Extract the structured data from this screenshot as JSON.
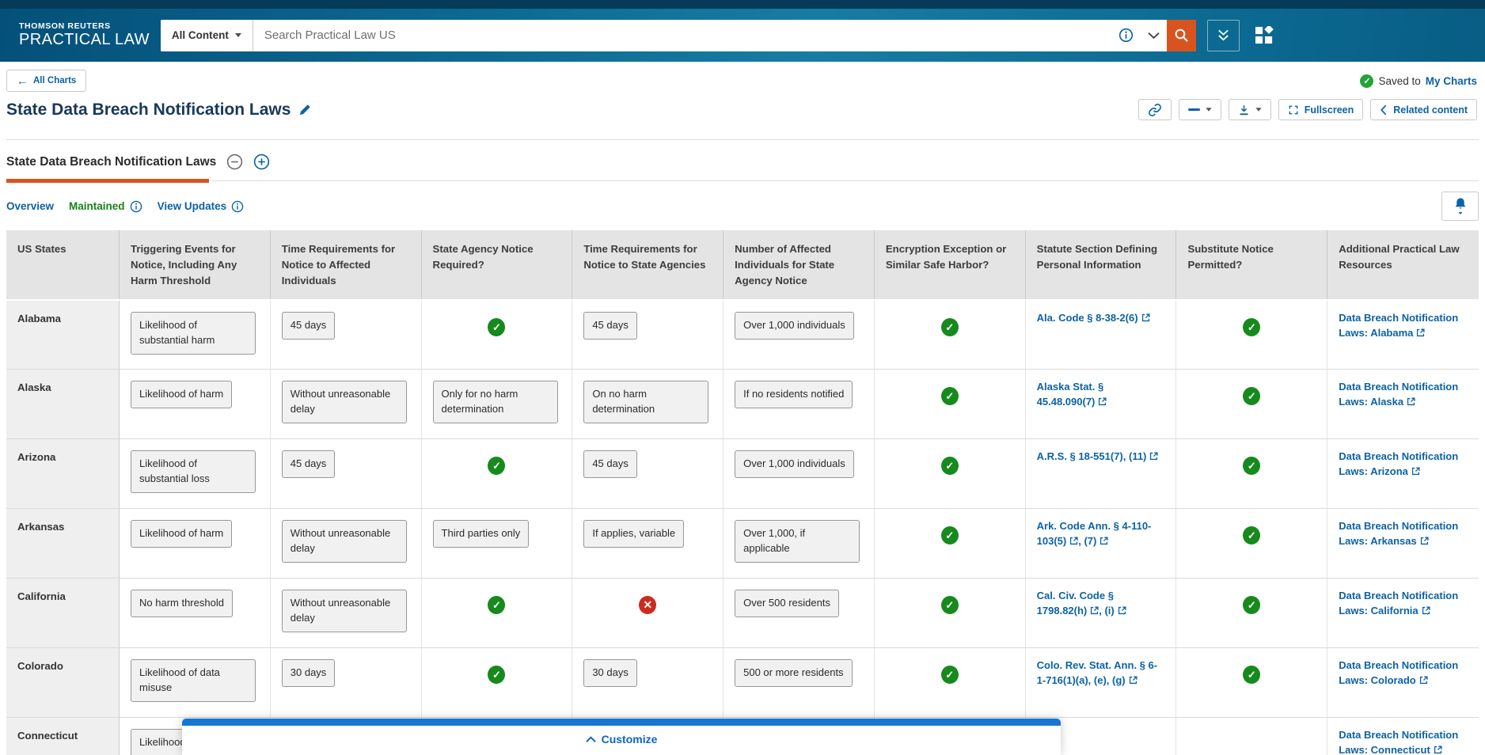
{
  "header": {
    "brand_top": "THOMSON REUTERS",
    "brand_bottom": "PRACTICAL LAW",
    "scope_label": "All Content",
    "search_placeholder": "Search Practical Law US"
  },
  "page": {
    "back_label": "All Charts",
    "saved_prefix": "Saved to",
    "saved_link": "My Charts",
    "title": "State Data Breach Notification Laws",
    "toolbar": {
      "fullscreen": "Fullscreen",
      "related": "Related content"
    },
    "tab": "State Data Breach Notification Laws",
    "overview": "Overview",
    "maintained": "Maintained",
    "view_updates": "View Updates",
    "customize": "Customize"
  },
  "colors": {
    "accent_orange": "#d9531e",
    "link_blue": "#0c62a6",
    "check_green": "#168a1c",
    "cross_red": "#ce2b1d",
    "maintained_green": "#178217",
    "customize_blue": "#1776d2",
    "header_blue": "#0b6890"
  },
  "table": {
    "columns": [
      "US States",
      "Triggering Events for Notice, Including Any Harm Threshold",
      "Time Requirements for Notice to Affected Individuals",
      "State Agency Notice Required?",
      "Time Requirements for Notice to State Agencies",
      "Number of Affected Individuals for State Agency Notice",
      "Encryption Exception or Similar Safe Harbor?",
      "Statute Section Defining Personal Information",
      "Substitute Notice Permitted?",
      "Additional Practical Law Resources"
    ],
    "rows": [
      {
        "state": "Alabama",
        "cells": [
          {
            "type": "chip",
            "text": "Likelihood of substantial harm"
          },
          {
            "type": "chip",
            "text": "45 days"
          },
          {
            "type": "check"
          },
          {
            "type": "chip",
            "text": "45 days"
          },
          {
            "type": "chip",
            "text": "Over 1,000 individuals"
          },
          {
            "type": "check"
          },
          {
            "type": "statute",
            "parts": [
              {
                "text": "Ala. Code § 8-38-2(6)",
                "ext": true
              }
            ]
          },
          {
            "type": "check"
          },
          {
            "type": "resource",
            "text": "Data Breach Notification Laws: Alabama",
            "ext": true
          }
        ]
      },
      {
        "state": "Alaska",
        "cells": [
          {
            "type": "chip",
            "text": "Likelihood of harm"
          },
          {
            "type": "chip",
            "text": "Without unreasonable delay"
          },
          {
            "type": "chip",
            "text": "Only for no harm determination"
          },
          {
            "type": "chip",
            "text": "On no harm determination"
          },
          {
            "type": "chip",
            "text": "If no residents notified"
          },
          {
            "type": "check"
          },
          {
            "type": "statute",
            "parts": [
              {
                "text": "Alaska Stat. § 45.48.090(7)",
                "ext": true
              }
            ]
          },
          {
            "type": "check"
          },
          {
            "type": "resource",
            "text": "Data Breach Notification Laws: Alaska",
            "ext": true
          }
        ]
      },
      {
        "state": "Arizona",
        "cells": [
          {
            "type": "chip",
            "text": "Likelihood of substantial loss"
          },
          {
            "type": "chip",
            "text": "45 days"
          },
          {
            "type": "check"
          },
          {
            "type": "chip",
            "text": "45 days"
          },
          {
            "type": "chip",
            "text": "Over 1,000 individuals"
          },
          {
            "type": "check"
          },
          {
            "type": "statute",
            "parts": [
              {
                "text": "A.R.S. § 18-551(7), (11)",
                "ext": true
              }
            ]
          },
          {
            "type": "check"
          },
          {
            "type": "resource",
            "text": "Data Breach Notification Laws: Arizona",
            "ext": true
          }
        ]
      },
      {
        "state": "Arkansas",
        "cells": [
          {
            "type": "chip",
            "text": "Likelihood of harm"
          },
          {
            "type": "chip",
            "text": "Without unreasonable delay"
          },
          {
            "type": "chip",
            "text": "Third parties only"
          },
          {
            "type": "chip",
            "text": "If applies, variable"
          },
          {
            "type": "chip",
            "text": "Over 1,000, if applicable"
          },
          {
            "type": "check"
          },
          {
            "type": "statute",
            "parts": [
              {
                "text": "Ark. Code Ann. § 4-110-103(5)",
                "ext": true
              },
              {
                "text": ", (7)",
                "ext": true
              }
            ]
          },
          {
            "type": "check"
          },
          {
            "type": "resource",
            "text": "Data Breach Notification Laws: Arkansas",
            "ext": true
          }
        ]
      },
      {
        "state": "California",
        "cells": [
          {
            "type": "chip",
            "text": "No harm threshold"
          },
          {
            "type": "chip",
            "text": "Without unreasonable delay"
          },
          {
            "type": "check"
          },
          {
            "type": "cross"
          },
          {
            "type": "chip",
            "text": "Over 500 residents"
          },
          {
            "type": "check"
          },
          {
            "type": "statute",
            "parts": [
              {
                "text": "Cal. Civ. Code § 1798.82(h)",
                "ext": true
              },
              {
                "text": ", (i)",
                "ext": true
              }
            ]
          },
          {
            "type": "check"
          },
          {
            "type": "resource",
            "text": "Data Breach Notification Laws: California",
            "ext": true
          }
        ]
      },
      {
        "state": "Colorado",
        "cells": [
          {
            "type": "chip",
            "text": "Likelihood of data misuse"
          },
          {
            "type": "chip",
            "text": "30 days"
          },
          {
            "type": "check"
          },
          {
            "type": "chip",
            "text": "30 days"
          },
          {
            "type": "chip",
            "text": "500 or more residents"
          },
          {
            "type": "check"
          },
          {
            "type": "statute",
            "parts": [
              {
                "text": "Colo. Rev. Stat. Ann. § 6-1-716(1)(a), (e), (g)",
                "ext": true
              }
            ]
          },
          {
            "type": "check"
          },
          {
            "type": "resource",
            "text": "Data Breach Notification Laws: Colorado",
            "ext": true
          }
        ]
      },
      {
        "state": "Connecticut",
        "cells": [
          {
            "type": "chip",
            "text": "Likelihood of harm"
          },
          {
            "type": "none"
          },
          {
            "type": "none"
          },
          {
            "type": "none"
          },
          {
            "type": "none"
          },
          {
            "type": "none"
          },
          {
            "type": "none"
          },
          {
            "type": "none"
          },
          {
            "type": "resource",
            "text": "Data Breach Notification Laws: Connecticut",
            "ext": true
          }
        ]
      }
    ]
  }
}
